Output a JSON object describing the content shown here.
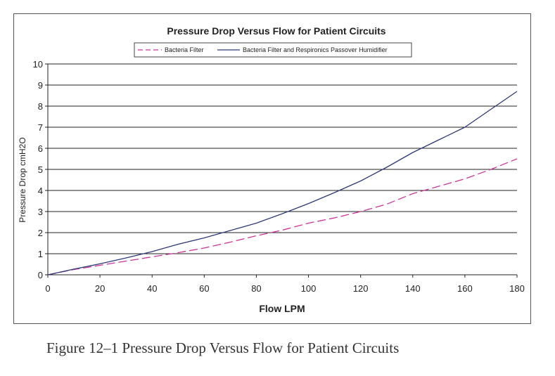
{
  "chart_data": {
    "type": "line",
    "title": "Pressure Drop Versus Flow for Patient Circuits",
    "xlabel": "Flow LPM",
    "ylabel": "Pressure Drop cmH2O",
    "xlim": [
      0,
      180
    ],
    "ylim": [
      0,
      10
    ],
    "xticks": [
      0,
      20,
      40,
      60,
      80,
      100,
      120,
      140,
      160,
      180
    ],
    "yticks": [
      0,
      1,
      2,
      3,
      4,
      5,
      6,
      7,
      8,
      9,
      10
    ],
    "grid": "horizontal",
    "legend_position": "top",
    "series": [
      {
        "name": "Bacteria Filter",
        "color": "#cc3399",
        "style": "dashed",
        "x": [
          0,
          10,
          20,
          30,
          40,
          50,
          60,
          70,
          80,
          90,
          100,
          110,
          120,
          130,
          140,
          150,
          160,
          170,
          180
        ],
        "values": [
          0,
          0.25,
          0.45,
          0.65,
          0.85,
          1.05,
          1.27,
          1.55,
          1.85,
          2.12,
          2.45,
          2.7,
          3.0,
          3.35,
          3.85,
          4.2,
          4.55,
          5.0,
          5.5
        ]
      },
      {
        "name": "Bacteria Filter and Respironics Passover Humidifier",
        "color": "#2e3a78",
        "style": "solid",
        "x": [
          0,
          10,
          20,
          30,
          40,
          50,
          60,
          70,
          80,
          90,
          100,
          110,
          120,
          130,
          140,
          150,
          160,
          170,
          180
        ],
        "values": [
          0,
          0.27,
          0.52,
          0.8,
          1.1,
          1.45,
          1.75,
          2.1,
          2.45,
          2.9,
          3.38,
          3.9,
          4.45,
          5.1,
          5.8,
          6.4,
          7.0,
          7.85,
          8.7
        ]
      }
    ]
  },
  "caption": "Figure 12–1  Pressure Drop Versus Flow for Patient Circuits"
}
